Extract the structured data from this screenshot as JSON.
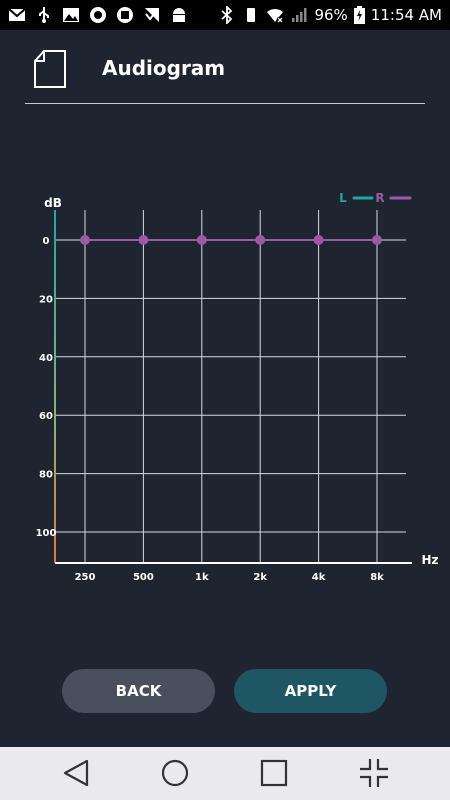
{
  "status_bar": {
    "left_icons": [
      "gmail-icon",
      "usb-icon",
      "image-icon",
      "app-icon",
      "app-icon-2",
      "check-flag-icon",
      "android-icon"
    ],
    "battery_percent": "96%",
    "time": "11:54 AM"
  },
  "header": {
    "title": "Audiogram",
    "icon": "document-icon"
  },
  "chart_data": {
    "type": "line",
    "ylabel": "dB",
    "xlabel": "Hz",
    "categories": [
      "250",
      "500",
      "1k",
      "2k",
      "4k",
      "8k"
    ],
    "y_ticks": [
      "0",
      "20",
      "40",
      "60",
      "80",
      "100"
    ],
    "ylim": [
      0,
      110
    ],
    "y_inverted": true,
    "legend": [
      {
        "name": "L",
        "color": "#1fa89c"
      },
      {
        "name": "R",
        "color": "#9b59a6"
      }
    ],
    "legend_position": "top-right",
    "grid": true,
    "series": [
      {
        "name": "R",
        "values": [
          0,
          0,
          0,
          0,
          0,
          0
        ],
        "color": "#9b59a6"
      }
    ]
  },
  "buttons": {
    "back_label": "BACK",
    "apply_label": "APPLY"
  },
  "nav_bar": {
    "items": [
      "back-triangle-icon",
      "home-circle-icon",
      "recents-square-icon",
      "shrink-icon"
    ]
  }
}
